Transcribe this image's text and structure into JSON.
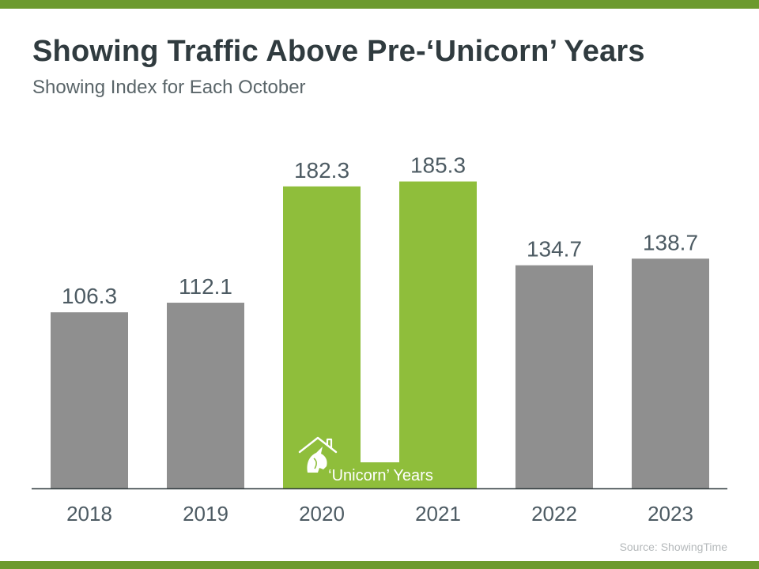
{
  "header": {
    "title": "Showing Traffic Above Pre-‘Unicorn’ Years",
    "subtitle": "Showing Index for Each October"
  },
  "footer": {
    "source": "Source: ShowingTime"
  },
  "colors": {
    "band": "#6c9a2e",
    "bar_default": "#8f8f8f",
    "bar_highlight": "#8fbe3b",
    "axis": "#303b3f",
    "label": "#4d5b63"
  },
  "chart_data": {
    "type": "bar",
    "title": "Showing Traffic Above Pre-‘Unicorn’ Years",
    "subtitle": "Showing Index for Each October",
    "categories": [
      "2018",
      "2019",
      "2020",
      "2021",
      "2022",
      "2023"
    ],
    "values": [
      106.3,
      112.1,
      182.3,
      185.3,
      134.7,
      138.7
    ],
    "value_labels": [
      "106.3",
      "112.1",
      "182.3",
      "185.3",
      "134.7",
      "138.7"
    ],
    "highlighted": [
      "2020",
      "2021"
    ],
    "annotation": {
      "text": "‘Unicorn’ Years",
      "icon": "house-unicorn-icon",
      "spans": [
        "2020",
        "2021"
      ]
    },
    "ylim": [
      0,
      200
    ],
    "grid": false,
    "legend": "none"
  }
}
